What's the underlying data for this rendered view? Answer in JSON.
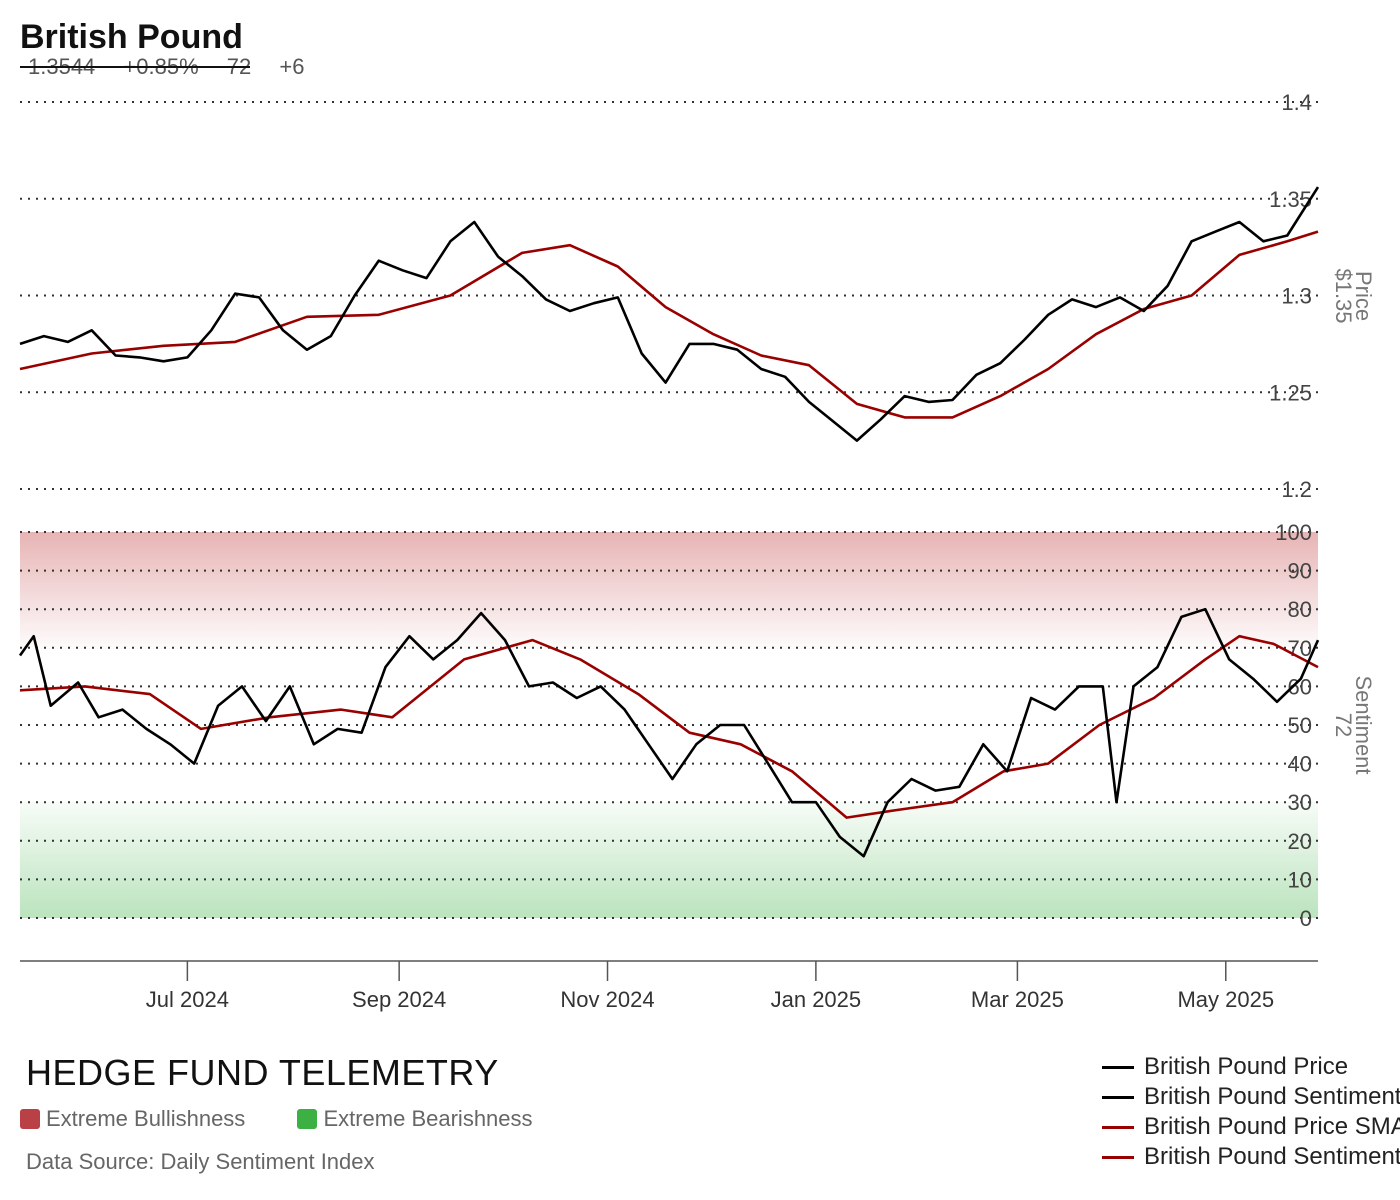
{
  "header": {
    "title": "British Pound",
    "price": "1.3544",
    "change_pct": "+0.85%",
    "sentiment": "72",
    "sentiment_change": "+6"
  },
  "colors": {
    "price_line": "#000000",
    "sma_line": "#990000",
    "bull_zone": "#c0393b",
    "bear_zone": "#3cb043",
    "grid": "#333333"
  },
  "branding": {
    "name": "HEDGE FUND TELEMETRY",
    "source": "Data Source: Daily Sentiment Index"
  },
  "zones": [
    {
      "label": "Extreme Bullishness",
      "color": "#c0393b"
    },
    {
      "label": "Extreme Bearishness",
      "color": "#3cb043"
    }
  ],
  "legend": [
    {
      "label": "British Pound Price",
      "color": "#000000"
    },
    {
      "label": "British Pound Sentiment",
      "color": "#000000"
    },
    {
      "label": "British Pound Price SMA",
      "color": "#990000"
    },
    {
      "label": "British Pound Sentiment SMA",
      "color": "#990000"
    }
  ],
  "chart_data": {
    "type": "line",
    "x_range": [
      "2024-05-13",
      "2025-05-28"
    ],
    "x_ticks": [
      {
        "date": "2024-07-01",
        "label": "Jul 2024"
      },
      {
        "date": "2024-09-01",
        "label": "Sep 2024"
      },
      {
        "date": "2024-11-01",
        "label": "Nov 2024"
      },
      {
        "date": "2025-01-01",
        "label": "Jan 2025"
      },
      {
        "date": "2025-03-01",
        "label": "Mar 2025"
      },
      {
        "date": "2025-05-01",
        "label": "May 2025"
      }
    ],
    "panels": [
      {
        "axis_title": "Price",
        "axis_value": "$1.35",
        "ylim": [
          1.2,
          1.4
        ],
        "ticks": [
          "1.4",
          "1.35",
          "1.3",
          "1.25",
          "1.2"
        ],
        "tick_values": [
          1.4,
          1.35,
          1.3,
          1.25,
          1.2
        ],
        "series": [
          {
            "name": "British Pound Price",
            "color": "#000000",
            "points": [
              [
                "2024-05-13",
                1.275
              ],
              [
                "2024-05-20",
                1.279
              ],
              [
                "2024-05-27",
                1.276
              ],
              [
                "2024-06-03",
                1.282
              ],
              [
                "2024-06-10",
                1.269
              ],
              [
                "2024-06-17",
                1.268
              ],
              [
                "2024-06-24",
                1.266
              ],
              [
                "2024-07-01",
                1.268
              ],
              [
                "2024-07-08",
                1.282
              ],
              [
                "2024-07-15",
                1.301
              ],
              [
                "2024-07-22",
                1.299
              ],
              [
                "2024-07-29",
                1.282
              ],
              [
                "2024-08-05",
                1.272
              ],
              [
                "2024-08-12",
                1.279
              ],
              [
                "2024-08-19",
                1.3
              ],
              [
                "2024-08-26",
                1.318
              ],
              [
                "2024-09-02",
                1.313
              ],
              [
                "2024-09-09",
                1.309
              ],
              [
                "2024-09-16",
                1.328
              ],
              [
                "2024-09-23",
                1.338
              ],
              [
                "2024-09-30",
                1.32
              ],
              [
                "2024-10-07",
                1.31
              ],
              [
                "2024-10-14",
                1.298
              ],
              [
                "2024-10-21",
                1.292
              ],
              [
                "2024-10-28",
                1.296
              ],
              [
                "2024-11-04",
                1.299
              ],
              [
                "2024-11-11",
                1.27
              ],
              [
                "2024-11-18",
                1.255
              ],
              [
                "2024-11-25",
                1.275
              ],
              [
                "2024-12-02",
                1.275
              ],
              [
                "2024-12-09",
                1.272
              ],
              [
                "2024-12-16",
                1.262
              ],
              [
                "2024-12-23",
                1.258
              ],
              [
                "2024-12-30",
                1.245
              ],
              [
                "2025-01-06",
                1.235
              ],
              [
                "2025-01-13",
                1.225
              ],
              [
                "2025-01-20",
                1.236
              ],
              [
                "2025-01-27",
                1.248
              ],
              [
                "2025-02-03",
                1.245
              ],
              [
                "2025-02-10",
                1.246
              ],
              [
                "2025-02-17",
                1.259
              ],
              [
                "2025-02-24",
                1.265
              ],
              [
                "2025-03-03",
                1.277
              ],
              [
                "2025-03-10",
                1.29
              ],
              [
                "2025-03-17",
                1.298
              ],
              [
                "2025-03-24",
                1.294
              ],
              [
                "2025-03-31",
                1.299
              ],
              [
                "2025-04-07",
                1.292
              ],
              [
                "2025-04-14",
                1.305
              ],
              [
                "2025-04-21",
                1.328
              ],
              [
                "2025-04-28",
                1.333
              ],
              [
                "2025-05-05",
                1.338
              ],
              [
                "2025-05-12",
                1.328
              ],
              [
                "2025-05-19",
                1.331
              ],
              [
                "2025-05-28",
                1.356
              ]
            ]
          },
          {
            "name": "British Pound Price SMA",
            "color": "#990000",
            "points": [
              [
                "2024-05-13",
                1.262
              ],
              [
                "2024-06-03",
                1.27
              ],
              [
                "2024-06-24",
                1.274
              ],
              [
                "2024-07-15",
                1.276
              ],
              [
                "2024-08-05",
                1.289
              ],
              [
                "2024-08-26",
                1.29
              ],
              [
                "2024-09-16",
                1.3
              ],
              [
                "2024-10-07",
                1.322
              ],
              [
                "2024-10-21",
                1.326
              ],
              [
                "2024-11-04",
                1.315
              ],
              [
                "2024-11-18",
                1.294
              ],
              [
                "2024-12-02",
                1.28
              ],
              [
                "2024-12-16",
                1.269
              ],
              [
                "2024-12-30",
                1.264
              ],
              [
                "2025-01-13",
                1.244
              ],
              [
                "2025-01-27",
                1.237
              ],
              [
                "2025-02-10",
                1.237
              ],
              [
                "2025-02-24",
                1.248
              ],
              [
                "2025-03-10",
                1.262
              ],
              [
                "2025-03-24",
                1.28
              ],
              [
                "2025-04-07",
                1.293
              ],
              [
                "2025-04-21",
                1.3
              ],
              [
                "2025-05-05",
                1.321
              ],
              [
                "2025-05-19",
                1.328
              ],
              [
                "2025-05-28",
                1.333
              ]
            ]
          }
        ]
      },
      {
        "axis_title": "Sentiment",
        "axis_value": "72",
        "ylim": [
          0,
          100
        ],
        "ticks": [
          "100",
          "90",
          "80",
          "70",
          "60",
          "50",
          "40",
          "30",
          "20",
          "10",
          "0"
        ],
        "tick_values": [
          100,
          90,
          80,
          70,
          60,
          50,
          40,
          30,
          20,
          10,
          0
        ],
        "bands": [
          {
            "label": "Extreme Bullishness",
            "from": 70,
            "to": 100,
            "color": "#c0393b"
          },
          {
            "label": "Extreme Bearishness",
            "from": 0,
            "to": 30,
            "color": "#3cb043"
          }
        ],
        "series": [
          {
            "name": "British Pound Sentiment",
            "color": "#000000",
            "points": [
              [
                "2024-05-13",
                68
              ],
              [
                "2024-05-17",
                73
              ],
              [
                "2024-05-22",
                55
              ],
              [
                "2024-05-30",
                61
              ],
              [
                "2024-06-05",
                52
              ],
              [
                "2024-06-12",
                54
              ],
              [
                "2024-06-19",
                49
              ],
              [
                "2024-06-26",
                45
              ],
              [
                "2024-07-03",
                40
              ],
              [
                "2024-07-10",
                55
              ],
              [
                "2024-07-17",
                60
              ],
              [
                "2024-07-24",
                51
              ],
              [
                "2024-07-31",
                60
              ],
              [
                "2024-08-07",
                45
              ],
              [
                "2024-08-14",
                49
              ],
              [
                "2024-08-21",
                48
              ],
              [
                "2024-08-28",
                65
              ],
              [
                "2024-09-04",
                73
              ],
              [
                "2024-09-11",
                67
              ],
              [
                "2024-09-18",
                72
              ],
              [
                "2024-09-25",
                79
              ],
              [
                "2024-10-02",
                72
              ],
              [
                "2024-10-09",
                60
              ],
              [
                "2024-10-16",
                61
              ],
              [
                "2024-10-23",
                57
              ],
              [
                "2024-10-30",
                60
              ],
              [
                "2024-11-06",
                54
              ],
              [
                "2024-11-13",
                45
              ],
              [
                "2024-11-20",
                36
              ],
              [
                "2024-11-27",
                45
              ],
              [
                "2024-12-04",
                50
              ],
              [
                "2024-12-11",
                50
              ],
              [
                "2024-12-18",
                40
              ],
              [
                "2024-12-25",
                30
              ],
              [
                "2025-01-01",
                30
              ],
              [
                "2025-01-08",
                21
              ],
              [
                "2025-01-15",
                16
              ],
              [
                "2025-01-22",
                30
              ],
              [
                "2025-01-29",
                36
              ],
              [
                "2025-02-05",
                33
              ],
              [
                "2025-02-12",
                34
              ],
              [
                "2025-02-19",
                45
              ],
              [
                "2025-02-26",
                38
              ],
              [
                "2025-03-05",
                57
              ],
              [
                "2025-03-12",
                54
              ],
              [
                "2025-03-19",
                60
              ],
              [
                "2025-03-26",
                60
              ],
              [
                "2025-03-30",
                30
              ],
              [
                "2025-04-04",
                60
              ],
              [
                "2025-04-11",
                65
              ],
              [
                "2025-04-18",
                78
              ],
              [
                "2025-04-25",
                80
              ],
              [
                "2025-05-02",
                67
              ],
              [
                "2025-05-09",
                62
              ],
              [
                "2025-05-16",
                56
              ],
              [
                "2025-05-23",
                62
              ],
              [
                "2025-05-28",
                72
              ]
            ]
          },
          {
            "name": "British Pound Sentiment SMA",
            "color": "#990000",
            "points": [
              [
                "2024-05-13",
                59
              ],
              [
                "2024-06-01",
                60
              ],
              [
                "2024-06-20",
                58
              ],
              [
                "2024-07-05",
                49
              ],
              [
                "2024-07-25",
                52
              ],
              [
                "2024-08-15",
                54
              ],
              [
                "2024-08-30",
                52
              ],
              [
                "2024-09-20",
                67
              ],
              [
                "2024-10-10",
                72
              ],
              [
                "2024-10-24",
                67
              ],
              [
                "2024-11-10",
                58
              ],
              [
                "2024-11-25",
                48
              ],
              [
                "2024-12-10",
                45
              ],
              [
                "2024-12-25",
                38
              ],
              [
                "2025-01-10",
                26
              ],
              [
                "2025-01-25",
                28
              ],
              [
                "2025-02-10",
                30
              ],
              [
                "2025-02-25",
                38
              ],
              [
                "2025-03-10",
                40
              ],
              [
                "2025-03-25",
                50
              ],
              [
                "2025-04-10",
                57
              ],
              [
                "2025-04-25",
                67
              ],
              [
                "2025-05-05",
                73
              ],
              [
                "2025-05-15",
                71
              ],
              [
                "2025-05-28",
                65
              ]
            ]
          }
        ]
      }
    ]
  }
}
